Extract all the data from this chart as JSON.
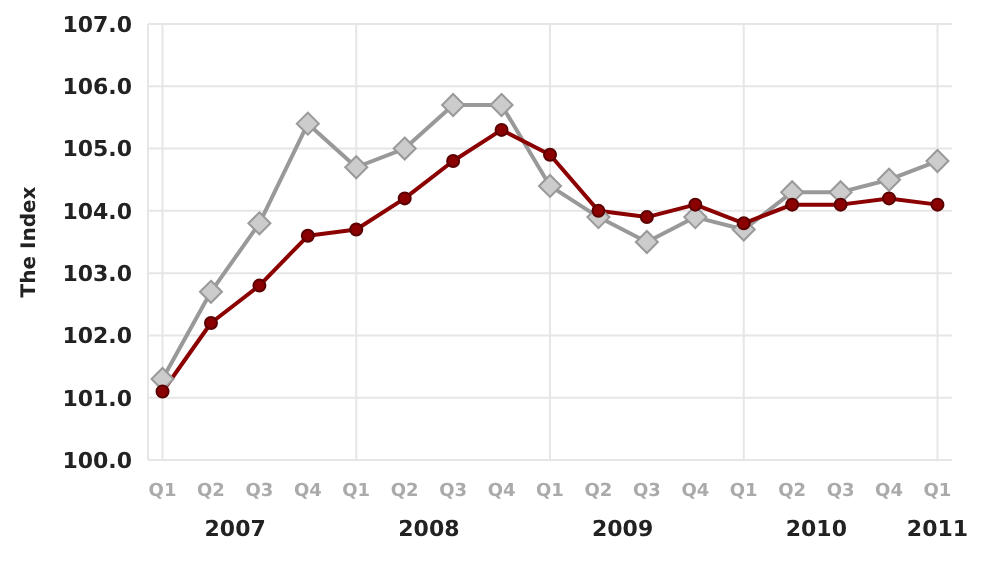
{
  "chart_data": {
    "type": "line",
    "ylabel": "The Index",
    "categories": [
      "Q1",
      "Q2",
      "Q3",
      "Q4",
      "Q1",
      "Q2",
      "Q3",
      "Q4",
      "Q1",
      "Q2",
      "Q3",
      "Q4",
      "Q1",
      "Q2",
      "Q3",
      "Q4",
      "Q1"
    ],
    "series": [
      {
        "color": "#999999",
        "marker": "diamond",
        "values": [
          101.3,
          102.7,
          103.8,
          105.4,
          104.7,
          105.0,
          105.7,
          105.7,
          104.4,
          103.9,
          103.5,
          103.9,
          103.7,
          104.3,
          104.3,
          104.5,
          104.8
        ]
      },
      {
        "color": "#8b0000",
        "marker": "circle",
        "values": [
          101.1,
          102.2,
          102.8,
          103.6,
          103.7,
          104.2,
          104.8,
          105.3,
          104.9,
          104.0,
          103.9,
          104.1,
          103.8,
          104.1,
          104.1,
          104.2,
          104.1
        ]
      }
    ],
    "annotations": [
      "2007",
      "2008",
      "2009",
      "2010",
      "2011"
    ],
    "ylim": [
      100,
      107
    ],
    "yticks": [
      {
        "value": 100,
        "label": "100.0"
      },
      {
        "value": 101,
        "label": "101.0"
      },
      {
        "value": 102,
        "label": "102.0"
      },
      {
        "value": 103,
        "label": "103.0"
      },
      {
        "value": 104,
        "label": "104.0"
      },
      {
        "value": 105,
        "label": "105.0"
      },
      {
        "value": 106,
        "label": "106.0"
      },
      {
        "value": 107,
        "label": "107.0"
      }
    ],
    "grid": true
  }
}
